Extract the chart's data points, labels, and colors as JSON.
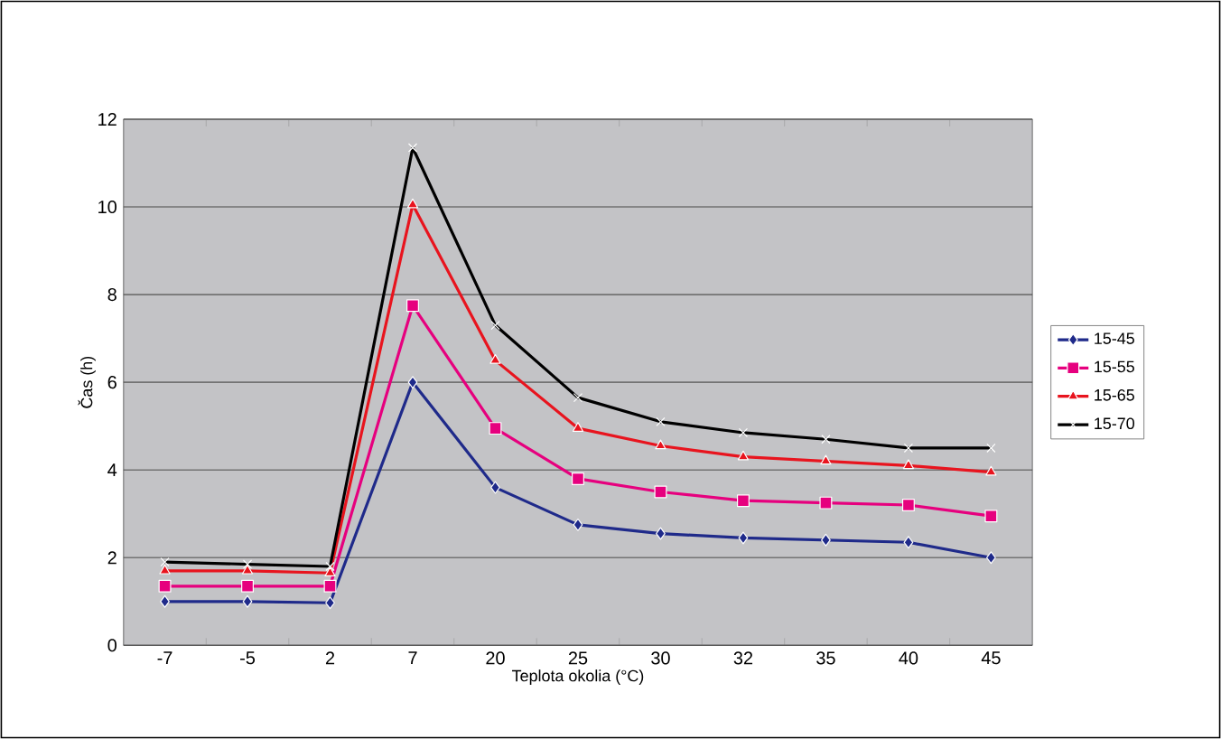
{
  "chart_data": {
    "type": "line",
    "xlabel": "Teplota okolia (°C)",
    "ylabel": "Čas (h)",
    "categories": [
      "-7",
      "-5",
      "2",
      "7",
      "20",
      "25",
      "30",
      "32",
      "35",
      "40",
      "45"
    ],
    "ylim": [
      0,
      12
    ],
    "yticks": [
      0,
      2,
      4,
      6,
      8,
      10,
      12
    ],
    "grid": "y",
    "legend": "right",
    "series": [
      {
        "name": "15-45",
        "color": "#1f2a8a",
        "marker": "diamond",
        "values": [
          1.0,
          1.0,
          0.97,
          6.0,
          3.6,
          2.75,
          2.55,
          2.45,
          2.4,
          2.35,
          2.0
        ]
      },
      {
        "name": "15-55",
        "color": "#e6007e",
        "marker": "square",
        "values": [
          1.35,
          1.35,
          1.35,
          7.75,
          4.95,
          3.8,
          3.5,
          3.3,
          3.25,
          3.2,
          2.95
        ]
      },
      {
        "name": "15-65",
        "color": "#e8141e",
        "marker": "triangle",
        "values": [
          1.7,
          1.7,
          1.65,
          10.05,
          6.5,
          4.95,
          4.55,
          4.3,
          4.2,
          4.1,
          3.95
        ]
      },
      {
        "name": "15-70",
        "color": "#000000",
        "marker": "cross",
        "values": [
          1.9,
          1.85,
          1.8,
          11.35,
          7.3,
          5.65,
          5.1,
          4.85,
          4.7,
          4.5,
          4.5
        ]
      }
    ]
  }
}
